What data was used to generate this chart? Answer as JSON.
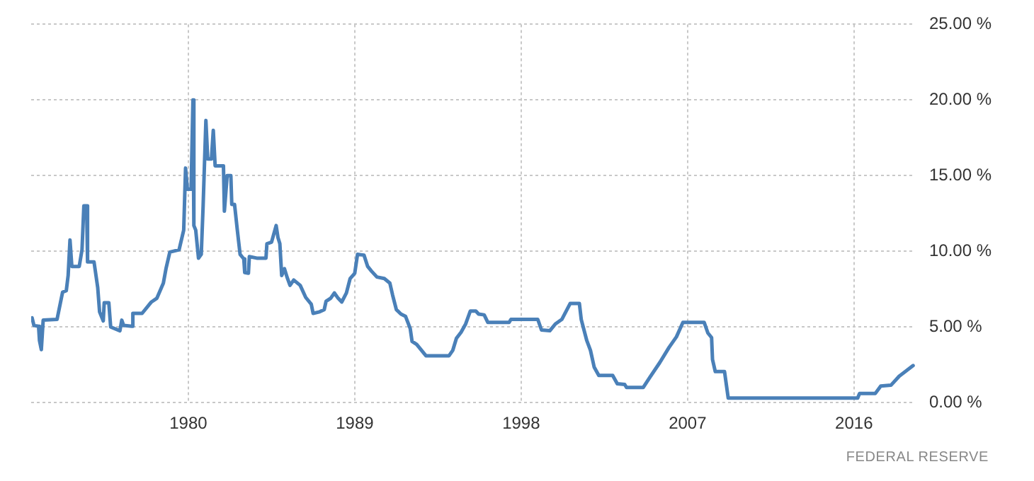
{
  "chart_data": {
    "type": "line",
    "x": [
      1971.55,
      1971.65,
      1971.9,
      1971.95,
      1972.05,
      1972.15,
      1972.9,
      1973.2,
      1973.4,
      1973.5,
      1973.6,
      1973.7,
      1974.1,
      1974.25,
      1974.35,
      1974.5,
      1974.55,
      1974.9,
      1975.1,
      1975.2,
      1975.4,
      1975.45,
      1975.7,
      1975.8,
      1976.3,
      1976.4,
      1976.5,
      1976.95,
      1977.0,
      1977.5,
      1978.0,
      1978.3,
      1978.65,
      1978.8,
      1979.0,
      1979.5,
      1979.75,
      1979.85,
      1979.95,
      1980.15,
      1980.25,
      1980.3,
      1980.4,
      1980.55,
      1980.7,
      1980.8,
      1980.95,
      1981.05,
      1981.25,
      1981.35,
      1981.45,
      1981.9,
      1981.95,
      1982.1,
      1982.3,
      1982.35,
      1982.5,
      1982.65,
      1982.8,
      1983.0,
      1983.05,
      1983.25,
      1983.3,
      1983.7,
      1984.2,
      1984.25,
      1984.5,
      1984.75,
      1984.85,
      1984.95,
      1985.05,
      1985.2,
      1985.35,
      1985.5,
      1985.7,
      1986.05,
      1986.35,
      1986.65,
      1986.75,
      1987.1,
      1987.35,
      1987.45,
      1987.7,
      1987.9,
      1988.1,
      1988.3,
      1988.55,
      1988.75,
      1989.0,
      1989.15,
      1989.5,
      1989.7,
      1989.9,
      1990.2,
      1990.6,
      1990.9,
      1991.05,
      1991.25,
      1991.5,
      1991.75,
      1992.0,
      1992.1,
      1992.35,
      1992.85,
      1994.1,
      1994.3,
      1994.5,
      1994.75,
      1995.0,
      1995.25,
      1995.55,
      1995.7,
      1996.0,
      1996.2,
      1997.35,
      1997.45,
      1998.9,
      1999.1,
      1999.55,
      1999.85,
      2000.2,
      2000.35,
      2000.65,
      2001.15,
      2001.25,
      2001.55,
      2001.75,
      2001.95,
      2002.2,
      2002.95,
      2003.2,
      2003.6,
      2003.7,
      2004.6,
      2004.95,
      2005.5,
      2006.0,
      2006.4,
      2006.75,
      2007.9,
      2008.1,
      2008.3,
      2008.35,
      2008.5,
      2009.0,
      2009.2,
      2016.2,
      2016.3,
      2017.15,
      2017.45,
      2018.0,
      2018.45,
      2019.2
    ],
    "series": [
      {
        "color": "#4a80b8",
        "values": [
          5.6,
          5.1,
          5.05,
          4.1,
          3.5,
          5.45,
          5.5,
          7.3,
          7.4,
          8.4,
          10.75,
          9.0,
          9.0,
          10.1,
          13.0,
          13.0,
          9.3,
          9.3,
          7.6,
          6.0,
          5.4,
          6.6,
          6.6,
          5.0,
          4.75,
          5.45,
          5.1,
          5.05,
          5.9,
          5.9,
          6.65,
          6.9,
          7.9,
          8.9,
          9.95,
          10.1,
          11.4,
          15.5,
          14.1,
          14.1,
          20.0,
          11.7,
          11.4,
          9.55,
          9.8,
          13.0,
          18.65,
          16.1,
          16.1,
          18.0,
          15.65,
          15.65,
          12.65,
          15.0,
          15.0,
          13.1,
          13.1,
          11.4,
          9.8,
          9.5,
          8.6,
          8.55,
          9.65,
          9.55,
          9.55,
          10.5,
          10.6,
          11.7,
          10.9,
          10.5,
          8.4,
          8.85,
          8.25,
          7.75,
          8.1,
          7.75,
          6.95,
          6.5,
          5.9,
          6.0,
          6.15,
          6.7,
          6.9,
          7.25,
          6.9,
          6.65,
          7.25,
          8.2,
          8.55,
          9.8,
          9.75,
          9.0,
          8.7,
          8.3,
          8.2,
          7.9,
          7.1,
          6.15,
          5.85,
          5.7,
          4.9,
          4.05,
          3.85,
          3.1,
          3.1,
          3.45,
          4.25,
          4.65,
          5.2,
          6.05,
          6.05,
          5.85,
          5.8,
          5.3,
          5.3,
          5.5,
          5.5,
          4.8,
          4.75,
          5.2,
          5.5,
          5.85,
          6.55,
          6.55,
          5.5,
          4.1,
          3.45,
          2.35,
          1.8,
          1.8,
          1.25,
          1.2,
          1.0,
          1.0,
          1.65,
          2.65,
          3.65,
          4.35,
          5.3,
          5.3,
          4.6,
          4.3,
          2.85,
          2.05,
          2.05,
          0.3,
          0.3,
          0.6,
          0.6,
          1.1,
          1.15,
          1.75,
          2.45
        ]
      }
    ],
    "xlim": [
      1971.5,
      2019.3
    ],
    "xticks": [
      1980,
      1989,
      1998,
      2007,
      2016
    ],
    "ylim": [
      0,
      25
    ],
    "yticks": [
      {
        "value": 0,
        "label": "0.00 %"
      },
      {
        "value": 5,
        "label": "5.00 %"
      },
      {
        "value": 10,
        "label": "10.00 %"
      },
      {
        "value": 15,
        "label": "15.00 %"
      },
      {
        "value": 20,
        "label": "20.00 %"
      },
      {
        "value": 25,
        "label": "25.00 %"
      }
    ],
    "grid": true,
    "marker": "none",
    "line_style": "solid",
    "legend": false,
    "annotations": [
      "FEDERAL RESERVE"
    ]
  }
}
